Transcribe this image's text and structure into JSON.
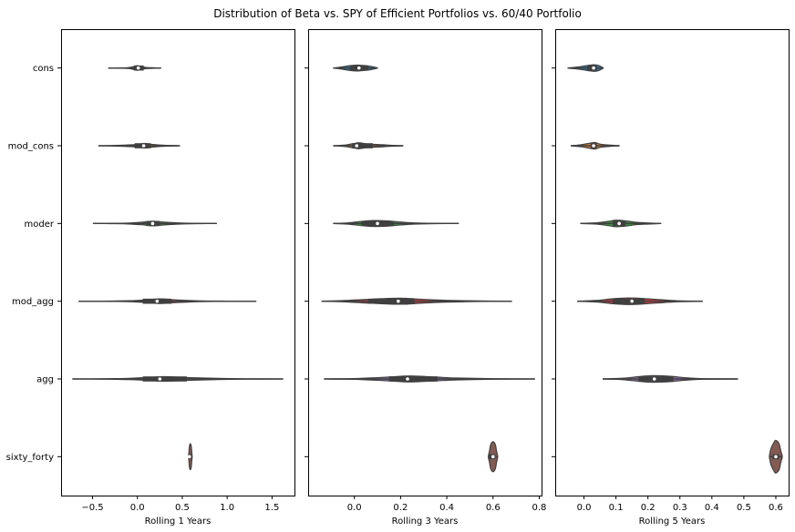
{
  "title": "Distribution of Beta vs. SPY of Efficient Portfolios vs. 60/40 Portfolio",
  "chart_data": {
    "type": "violin",
    "orientation": "horizontal",
    "categories": [
      "cons",
      "mod_cons",
      "moder",
      "mod_agg",
      "agg",
      "sixty_forty"
    ],
    "colors": [
      "#3274a1",
      "#e1812c",
      "#3a923a",
      "#c03d3e",
      "#9372b2",
      "#845b53"
    ],
    "panels": [
      {
        "xlabel": "Rolling 1 Years",
        "xlim": [
          -0.85,
          1.75
        ],
        "xticks": [
          -0.5,
          0.0,
          0.5,
          1.0,
          1.5
        ],
        "xtick_labels": [
          "−0.5",
          "0.0",
          "0.5",
          "1.0",
          "1.5"
        ],
        "violins": [
          {
            "min": -0.32,
            "q1": -0.04,
            "median": 0.01,
            "q3": 0.07,
            "max": 0.26,
            "width": 0.07,
            "shape": [
              [
                -0.32,
                0.02
              ],
              [
                -0.2,
                0.06
              ],
              [
                -0.1,
                0.2
              ],
              [
                -0.03,
                0.7
              ],
              [
                0.0,
                1.0
              ],
              [
                0.03,
                0.7
              ],
              [
                0.1,
                0.25
              ],
              [
                0.2,
                0.1
              ],
              [
                0.26,
                0.04
              ]
            ]
          },
          {
            "min": -0.43,
            "q1": -0.03,
            "median": 0.07,
            "q3": 0.15,
            "max": 0.47,
            "width": 0.07,
            "shape": [
              [
                -0.43,
                0.02
              ],
              [
                -0.3,
                0.08
              ],
              [
                -0.15,
                0.25
              ],
              [
                0.0,
                0.55
              ],
              [
                0.08,
                1.0
              ],
              [
                0.16,
                0.6
              ],
              [
                0.3,
                0.2
              ],
              [
                0.47,
                0.03
              ]
            ]
          },
          {
            "min": -0.49,
            "q1": 0.1,
            "median": 0.17,
            "q3": 0.25,
            "max": 0.88,
            "width": 0.07,
            "shape": [
              [
                -0.49,
                0.02
              ],
              [
                -0.3,
                0.07
              ],
              [
                -0.1,
                0.2
              ],
              [
                0.05,
                0.55
              ],
              [
                0.17,
                1.0
              ],
              [
                0.3,
                0.6
              ],
              [
                0.5,
                0.2
              ],
              [
                0.7,
                0.06
              ],
              [
                0.88,
                0.02
              ]
            ]
          },
          {
            "min": -0.65,
            "q1": 0.06,
            "median": 0.22,
            "q3": 0.38,
            "max": 1.32,
            "width": 0.07,
            "shape": [
              [
                -0.65,
                0.02
              ],
              [
                -0.4,
                0.05
              ],
              [
                -0.1,
                0.2
              ],
              [
                0.1,
                0.55
              ],
              [
                0.25,
                1.0
              ],
              [
                0.45,
                0.55
              ],
              [
                0.75,
                0.15
              ],
              [
                1.0,
                0.05
              ],
              [
                1.32,
                0.02
              ]
            ]
          },
          {
            "min": -0.72,
            "q1": 0.06,
            "median": 0.25,
            "q3": 0.55,
            "max": 1.62,
            "width": 0.07,
            "shape": [
              [
                -0.72,
                0.02
              ],
              [
                -0.4,
                0.06
              ],
              [
                -0.1,
                0.25
              ],
              [
                0.15,
                0.7
              ],
              [
                0.3,
                1.0
              ],
              [
                0.55,
                0.6
              ],
              [
                0.9,
                0.25
              ],
              [
                1.2,
                0.08
              ],
              [
                1.62,
                0.02
              ]
            ]
          },
          {
            "min": 0.57,
            "q1": 0.57,
            "median": 0.58,
            "q3": 0.6,
            "max": 0.61,
            "width": 0.4,
            "shape": [
              [
                0.57,
                0.06
              ],
              [
                0.575,
                0.4
              ],
              [
                0.58,
                0.8
              ],
              [
                0.59,
                1.0
              ],
              [
                0.6,
                0.8
              ],
              [
                0.605,
                0.4
              ],
              [
                0.61,
                0.06
              ]
            ]
          }
        ]
      },
      {
        "xlabel": "Rolling 3 Years",
        "xlim": [
          -0.2,
          0.81
        ],
        "xticks": [
          0.0,
          0.2,
          0.4,
          0.6,
          0.8
        ],
        "xtick_labels": [
          "0.0",
          "0.2",
          "0.4",
          "0.6",
          "0.8"
        ],
        "violins": [
          {
            "min": -0.09,
            "q1": -0.02,
            "median": 0.02,
            "q3": 0.06,
            "max": 0.1,
            "width": 0.09,
            "shape": [
              [
                -0.09,
                0.02
              ],
              [
                -0.06,
                0.3
              ],
              [
                -0.02,
                0.8
              ],
              [
                0.01,
                1.0
              ],
              [
                0.03,
                0.9
              ],
              [
                0.06,
                0.7
              ],
              [
                0.08,
                0.4
              ],
              [
                0.1,
                0.03
              ]
            ]
          },
          {
            "min": -0.09,
            "q1": -0.01,
            "median": 0.01,
            "q3": 0.08,
            "max": 0.21,
            "width": 0.09,
            "shape": [
              [
                -0.09,
                0.02
              ],
              [
                -0.04,
                0.25
              ],
              [
                0.0,
                0.8
              ],
              [
                0.02,
                1.0
              ],
              [
                0.06,
                0.6
              ],
              [
                0.12,
                0.35
              ],
              [
                0.17,
                0.12
              ],
              [
                0.21,
                0.02
              ]
            ]
          },
          {
            "min": -0.09,
            "q1": 0.03,
            "median": 0.1,
            "q3": 0.17,
            "max": 0.45,
            "width": 0.09,
            "shape": [
              [
                -0.09,
                0.02
              ],
              [
                -0.03,
                0.2
              ],
              [
                0.03,
                0.7
              ],
              [
                0.08,
                1.0
              ],
              [
                0.14,
                0.9
              ],
              [
                0.2,
                0.5
              ],
              [
                0.26,
                0.2
              ],
              [
                0.35,
                0.06
              ],
              [
                0.45,
                0.02
              ]
            ]
          },
          {
            "min": -0.14,
            "q1": 0.06,
            "median": 0.19,
            "q3": 0.26,
            "max": 0.68,
            "width": 0.09,
            "shape": [
              [
                -0.14,
                0.02
              ],
              [
                -0.05,
                0.2
              ],
              [
                0.05,
                0.6
              ],
              [
                0.15,
                0.95
              ],
              [
                0.22,
                1.0
              ],
              [
                0.3,
                0.6
              ],
              [
                0.4,
                0.3
              ],
              [
                0.55,
                0.08
              ],
              [
                0.68,
                0.02
              ]
            ]
          },
          {
            "min": -0.13,
            "q1": 0.15,
            "median": 0.23,
            "q3": 0.36,
            "max": 0.78,
            "width": 0.09,
            "shape": [
              [
                -0.13,
                0.02
              ],
              [
                0.0,
                0.12
              ],
              [
                0.1,
                0.45
              ],
              [
                0.2,
                0.9
              ],
              [
                0.25,
                1.0
              ],
              [
                0.35,
                0.65
              ],
              [
                0.45,
                0.3
              ],
              [
                0.6,
                0.08
              ],
              [
                0.78,
                0.02
              ]
            ]
          },
          {
            "min": 0.58,
            "q1": 0.58,
            "median": 0.6,
            "q3": 0.61,
            "max": 0.62,
            "width": 0.46,
            "shape": [
              [
                0.58,
                0.06
              ],
              [
                0.585,
                0.4
              ],
              [
                0.59,
                0.8
              ],
              [
                0.6,
                1.0
              ],
              [
                0.61,
                0.8
              ],
              [
                0.615,
                0.4
              ],
              [
                0.62,
                0.06
              ]
            ]
          }
        ]
      },
      {
        "xlabel": "Rolling 5 Years",
        "xlim": [
          -0.09,
          0.64
        ],
        "xticks": [
          0.0,
          0.1,
          0.2,
          0.3,
          0.4,
          0.5,
          0.6
        ],
        "xtick_labels": [
          "0.0",
          "0.1",
          "0.2",
          "0.3",
          "0.4",
          "0.5",
          "0.6"
        ],
        "violins": [
          {
            "min": -0.05,
            "q1": 0.01,
            "median": 0.03,
            "q3": 0.04,
            "max": 0.06,
            "width": 0.1,
            "shape": [
              [
                -0.05,
                0.03
              ],
              [
                -0.02,
                0.3
              ],
              [
                0.01,
                0.75
              ],
              [
                0.03,
                1.0
              ],
              [
                0.045,
                0.8
              ],
              [
                0.06,
                0.05
              ]
            ]
          },
          {
            "min": -0.04,
            "q1": 0.02,
            "median": 0.03,
            "q3": 0.04,
            "max": 0.11,
            "width": 0.1,
            "shape": [
              [
                -0.04,
                0.03
              ],
              [
                -0.01,
                0.3
              ],
              [
                0.02,
                0.8
              ],
              [
                0.035,
                1.0
              ],
              [
                0.05,
                0.5
              ],
              [
                0.08,
                0.2
              ],
              [
                0.11,
                0.03
              ]
            ]
          },
          {
            "min": -0.01,
            "q1": 0.09,
            "median": 0.11,
            "q3": 0.13,
            "max": 0.24,
            "width": 0.1,
            "shape": [
              [
                -0.01,
                0.03
              ],
              [
                0.04,
                0.2
              ],
              [
                0.08,
                0.7
              ],
              [
                0.1,
                1.0
              ],
              [
                0.13,
                0.8
              ],
              [
                0.17,
                0.3
              ],
              [
                0.24,
                0.03
              ]
            ]
          },
          {
            "min": -0.02,
            "q1": 0.09,
            "median": 0.15,
            "q3": 0.19,
            "max": 0.37,
            "width": 0.1,
            "shape": [
              [
                -0.02,
                0.03
              ],
              [
                0.04,
                0.25
              ],
              [
                0.09,
                0.75
              ],
              [
                0.14,
                1.0
              ],
              [
                0.19,
                0.8
              ],
              [
                0.25,
                0.4
              ],
              [
                0.3,
                0.12
              ],
              [
                0.37,
                0.03
              ]
            ]
          },
          {
            "min": 0.06,
            "q1": 0.17,
            "median": 0.22,
            "q3": 0.28,
            "max": 0.48,
            "width": 0.1,
            "shape": [
              [
                0.06,
                0.03
              ],
              [
                0.12,
                0.2
              ],
              [
                0.17,
                0.7
              ],
              [
                0.21,
                1.0
              ],
              [
                0.27,
                0.8
              ],
              [
                0.32,
                0.35
              ],
              [
                0.38,
                0.08
              ],
              [
                0.48,
                0.03
              ]
            ]
          },
          {
            "min": 0.58,
            "q1": 0.59,
            "median": 0.6,
            "q3": 0.61,
            "max": 0.62,
            "width": 0.5,
            "shape": [
              [
                0.58,
                0.06
              ],
              [
                0.585,
                0.5
              ],
              [
                0.595,
                0.9
              ],
              [
                0.6,
                1.0
              ],
              [
                0.61,
                0.8
              ],
              [
                0.615,
                0.4
              ],
              [
                0.62,
                0.06
              ]
            ]
          }
        ]
      }
    ]
  }
}
